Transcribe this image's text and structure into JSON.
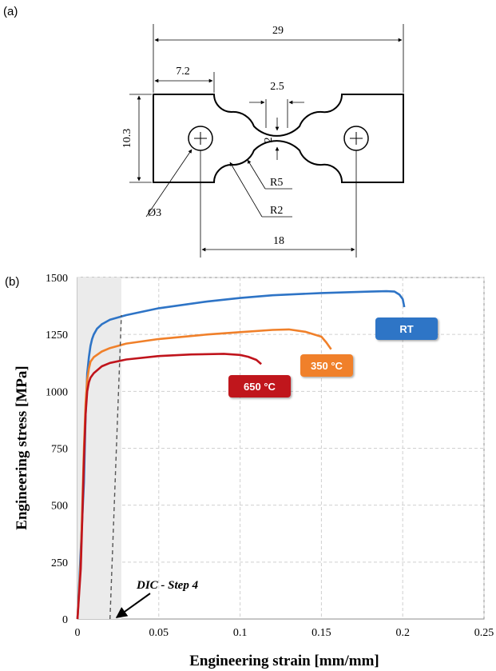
{
  "panel_a": {
    "label": "(a)",
    "dimensions": {
      "overall_length": "29",
      "grip_length": "7.2",
      "height": "10.3",
      "gauge_length": "2.5",
      "gauge_width": "2",
      "fillet_radius_large": "R5",
      "fillet_radius_small": "R2",
      "hole_diameter": "Ø3",
      "hole_spacing": "18"
    }
  },
  "panel_b": {
    "label": "(b)"
  },
  "chart_data": {
    "type": "line",
    "xlabel": "Engineering strain [mm/mm]",
    "ylabel": "Engineering stress [MPa]",
    "xlim": [
      0,
      0.25
    ],
    "ylim": [
      0,
      1500
    ],
    "xticks": [
      0,
      0.05,
      0.1,
      0.15,
      0.2,
      0.25
    ],
    "xtick_labels": [
      "0",
      "0.05",
      "0.1",
      "0.15",
      "0.2",
      "0.25"
    ],
    "yticks": [
      0,
      250,
      500,
      750,
      1000,
      1250,
      1500
    ],
    "ytick_labels": [
      "0",
      "250",
      "500",
      "750",
      "1000",
      "1250",
      "1500"
    ],
    "grid": true,
    "series": [
      {
        "name": "RT",
        "color": "#2e74c6",
        "x": [
          0,
          0.002,
          0.004,
          0.005,
          0.006,
          0.007,
          0.008,
          0.009,
          0.01,
          0.012,
          0.015,
          0.02,
          0.03,
          0.05,
          0.08,
          0.1,
          0.12,
          0.15,
          0.17,
          0.18,
          0.19,
          0.195,
          0.198,
          0.2,
          0.201
        ],
        "y": [
          0,
          300,
          600,
          900,
          1080,
          1150,
          1200,
          1230,
          1250,
          1275,
          1295,
          1315,
          1335,
          1365,
          1395,
          1410,
          1422,
          1432,
          1436,
          1438,
          1440,
          1438,
          1425,
          1405,
          1370
        ]
      },
      {
        "name": "350 °C",
        "color": "#f0802a",
        "x": [
          0,
          0.002,
          0.003,
          0.004,
          0.005,
          0.006,
          0.007,
          0.008,
          0.01,
          0.015,
          0.02,
          0.03,
          0.05,
          0.08,
          0.1,
          0.12,
          0.13,
          0.14,
          0.15,
          0.153,
          0.156
        ],
        "y": [
          0,
          250,
          500,
          750,
          950,
          1050,
          1100,
          1130,
          1150,
          1175,
          1190,
          1210,
          1230,
          1250,
          1260,
          1270,
          1272,
          1262,
          1240,
          1215,
          1185
        ]
      },
      {
        "name": "650 °C",
        "color": "#c0141c",
        "x": [
          0,
          0.002,
          0.003,
          0.004,
          0.005,
          0.006,
          0.007,
          0.008,
          0.01,
          0.015,
          0.02,
          0.03,
          0.05,
          0.07,
          0.09,
          0.1,
          0.105,
          0.11,
          0.113
        ],
        "y": [
          0,
          220,
          450,
          700,
          900,
          1000,
          1040,
          1060,
          1080,
          1110,
          1125,
          1140,
          1155,
          1162,
          1165,
          1160,
          1152,
          1138,
          1120
        ]
      }
    ],
    "dic_line": {
      "x": [
        0.02,
        0.027
      ],
      "y": [
        0,
        1335
      ]
    },
    "shaded_region": {
      "x": [
        0,
        0.027
      ]
    },
    "annotation": "DIC - Step 4"
  }
}
